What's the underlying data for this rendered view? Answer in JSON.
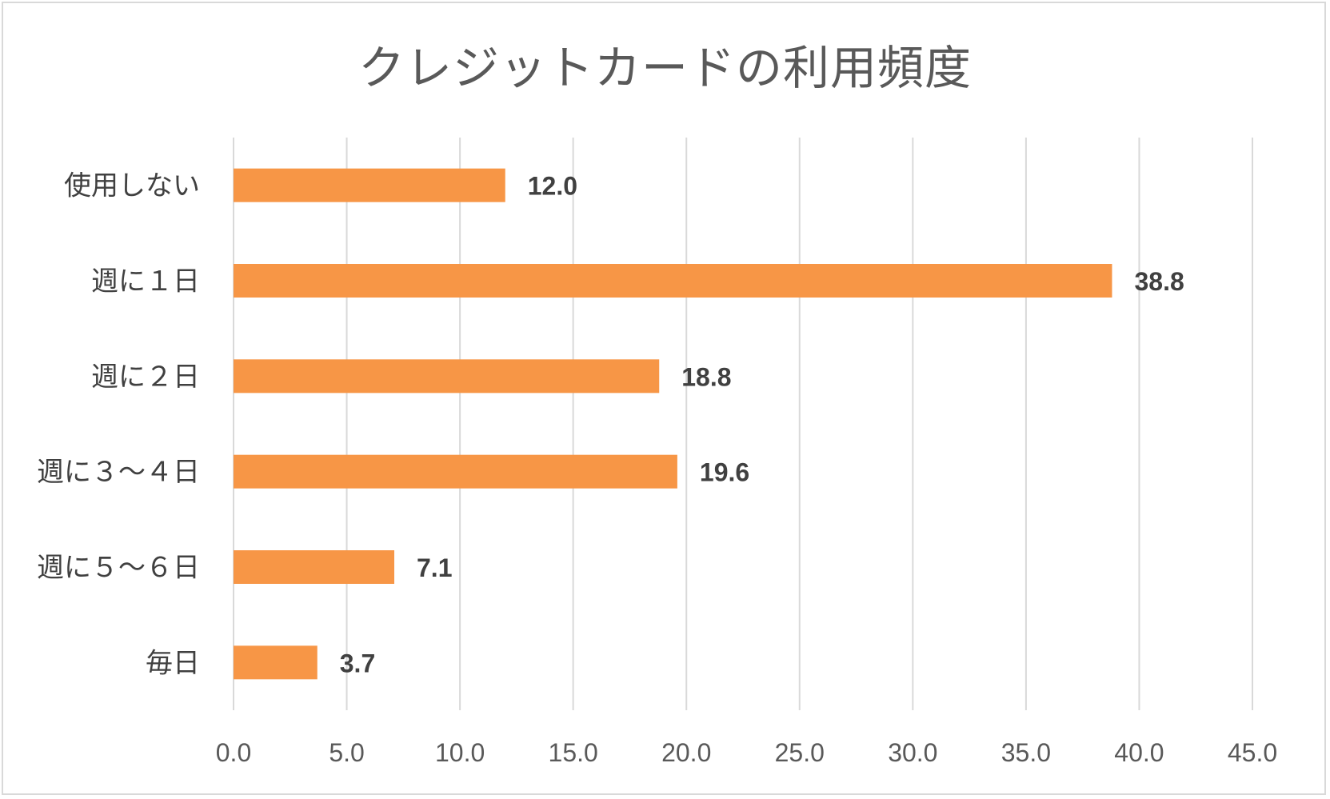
{
  "chart_data": {
    "type": "bar",
    "orientation": "horizontal",
    "title": "クレジットカードの利用頻度",
    "categories": [
      "使用しない",
      "週に１日",
      "週に２日",
      "週に３〜４日",
      "週に５〜６日",
      "毎日"
    ],
    "values": [
      12.0,
      38.8,
      18.8,
      19.6,
      7.1,
      3.7
    ],
    "data_labels": [
      "12.0",
      "38.8",
      "18.8",
      "19.6",
      "7.1",
      "3.7"
    ],
    "xlim": [
      0,
      45
    ],
    "xticks": [
      "0.0",
      "5.0",
      "10.0",
      "15.0",
      "20.0",
      "25.0",
      "30.0",
      "35.0",
      "40.0",
      "45.0"
    ],
    "grid": true,
    "legend": "none",
    "bar_color": "#f79646",
    "grid_color": "#d9d9d9"
  }
}
